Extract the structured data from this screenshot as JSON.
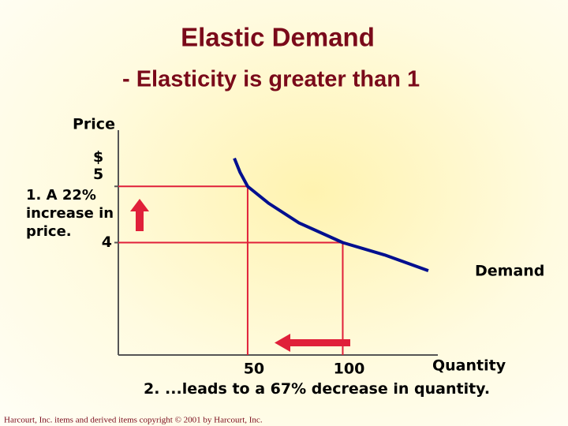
{
  "chart_data": {
    "type": "line",
    "title": "Elastic Demand",
    "subtitle": "- Elasticity is greater than 1",
    "x_label": "Quantity",
    "y_label": "Price",
    "series": [
      {
        "name": "Demand",
        "color": "#000f8f",
        "x": [
          43,
          46,
          50,
          61,
          77,
          100,
          122,
          145
        ],
        "values": [
          5.5,
          5.25,
          5,
          4.7,
          4.35,
          4,
          3.78,
          3.5
        ]
      }
    ],
    "reference_points": [
      {
        "x": 50,
        "y": 5
      },
      {
        "x": 100,
        "y": 4
      }
    ],
    "reference_color": "#e0203a",
    "xlim": [
      -18,
      150
    ],
    "ylim": [
      2,
      6
    ],
    "xticks": [
      50,
      100
    ],
    "yticks": [
      {
        "value": 5,
        "label": "$ 5"
      },
      4
    ],
    "annotations": [
      "1. A 22% increase in price.",
      "2. ...leads to a 67% decrease in quantity."
    ],
    "footer": "Harcourt, Inc. items and derived items copyright © 2001 by Harcourt, Inc."
  }
}
